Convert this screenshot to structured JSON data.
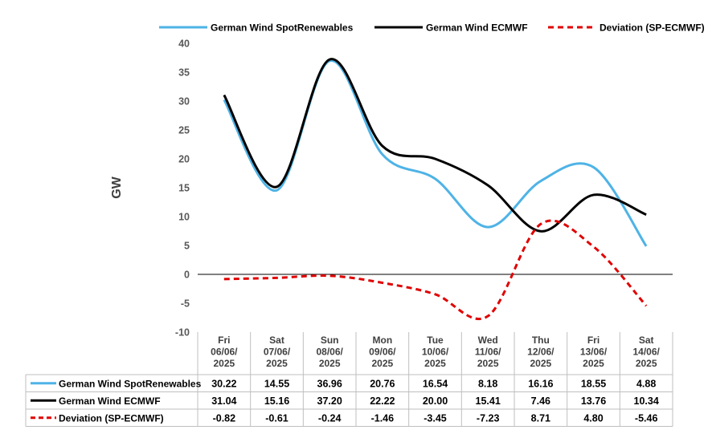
{
  "chart_data": {
    "type": "line",
    "ylabel": "GW",
    "ylim": [
      -10,
      40
    ],
    "yticks": [
      -10,
      -5,
      0,
      5,
      10,
      15,
      20,
      25,
      30,
      35,
      40
    ],
    "grid": false,
    "legend_position": "top",
    "categories": [
      [
        "Fri",
        "06/06/",
        "2025"
      ],
      [
        "Sat",
        "07/06/",
        "2025"
      ],
      [
        "Sun",
        "08/06/",
        "2025"
      ],
      [
        "Mon",
        "09/06/",
        "2025"
      ],
      [
        "Tue",
        "10/06/",
        "2025"
      ],
      [
        "Wed",
        "11/06/",
        "2025"
      ],
      [
        "Thu",
        "12/06/",
        "2025"
      ],
      [
        "Fri",
        "13/06/",
        "2025"
      ],
      [
        "Sat",
        "14/06/",
        "2025"
      ]
    ],
    "series": [
      {
        "name": "German Wind SpotRenewables",
        "color": "#4EB3E6",
        "dashed": false,
        "values": [
          30.22,
          14.55,
          36.96,
          20.76,
          16.54,
          8.18,
          16.16,
          18.55,
          4.88
        ],
        "labels": [
          "30.22",
          "14.55",
          "36.96",
          "20.76",
          "16.54",
          "8.18",
          "16.16",
          "18.55",
          "4.88"
        ]
      },
      {
        "name": "German Wind ECMWF",
        "color": "#000000",
        "dashed": false,
        "values": [
          31.04,
          15.16,
          37.2,
          22.22,
          20.0,
          15.41,
          7.46,
          13.76,
          10.34
        ],
        "labels": [
          "31.04",
          "15.16",
          "37.20",
          "22.22",
          "20.00",
          "15.41",
          "7.46",
          "13.76",
          "10.34"
        ]
      },
      {
        "name": "Deviation (SP-ECMWF)",
        "color": "#E00000",
        "dashed": true,
        "values": [
          -0.82,
          -0.61,
          -0.24,
          -1.46,
          -3.45,
          -7.23,
          8.71,
          4.8,
          -5.46
        ],
        "labels": [
          "-0.82",
          "-0.61",
          "-0.24",
          "-1.46",
          "-3.45",
          "-7.23",
          "8.71",
          "4.80",
          "-5.46"
        ]
      }
    ]
  }
}
